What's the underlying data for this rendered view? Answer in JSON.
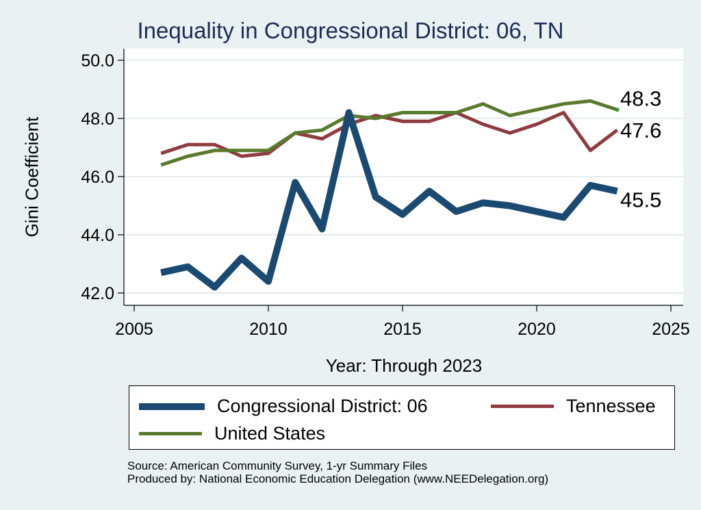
{
  "chart_data": {
    "type": "line",
    "title": "Inequality in Congressional District:  06, TN",
    "xlabel": "Year: Through 2023",
    "ylabel": "Gini Coefficient",
    "xlim": [
      2005,
      2025
    ],
    "ylim": [
      42.0,
      50.0
    ],
    "x_ticks": [
      "2005",
      "2010",
      "2015",
      "2020",
      "2025"
    ],
    "y_ticks": [
      "42.0",
      "44.0",
      "46.0",
      "48.0",
      "50.0"
    ],
    "grid": "horizontal",
    "x": [
      2006,
      2007,
      2008,
      2009,
      2010,
      2011,
      2012,
      2013,
      2014,
      2015,
      2016,
      2017,
      2018,
      2019,
      2020,
      2021,
      2022,
      2023
    ],
    "series": [
      {
        "name": "Congressional District:  06",
        "color": "#1a4a72",
        "values": [
          42.7,
          42.9,
          42.2,
          43.2,
          42.4,
          45.8,
          44.2,
          48.2,
          45.3,
          44.7,
          45.5,
          44.8,
          45.1,
          45.0,
          44.8,
          44.6,
          45.7,
          45.5
        ],
        "end_label": "45.5"
      },
      {
        "name": "Tennessee",
        "color": "#903b3f",
        "values": [
          46.8,
          47.1,
          47.1,
          46.7,
          46.8,
          47.5,
          47.3,
          47.8,
          48.1,
          47.9,
          47.9,
          48.2,
          47.8,
          47.5,
          47.8,
          48.2,
          46.9,
          47.6
        ],
        "end_label": "47.6"
      },
      {
        "name": "United States",
        "color": "#5a7a2e",
        "values": [
          46.4,
          46.7,
          46.9,
          46.9,
          46.9,
          47.5,
          47.6,
          48.1,
          48.0,
          48.2,
          48.2,
          48.2,
          48.5,
          48.1,
          48.3,
          48.5,
          48.6,
          48.3
        ],
        "end_label": "48.3"
      }
    ],
    "legend": {
      "position": "bottom",
      "entries": [
        "Congressional District:  06",
        "Tennessee",
        "United States"
      ]
    }
  },
  "source": {
    "line1": "Source: American Community Survey, 1-yr Summary Files",
    "line2": "Produced by: National Economic Education Delegation (www.NEEDelegation.org)"
  },
  "colors": {
    "background": "#eaf1f3",
    "plot_background": "#ffffff",
    "gridline": "#e3ecee"
  }
}
